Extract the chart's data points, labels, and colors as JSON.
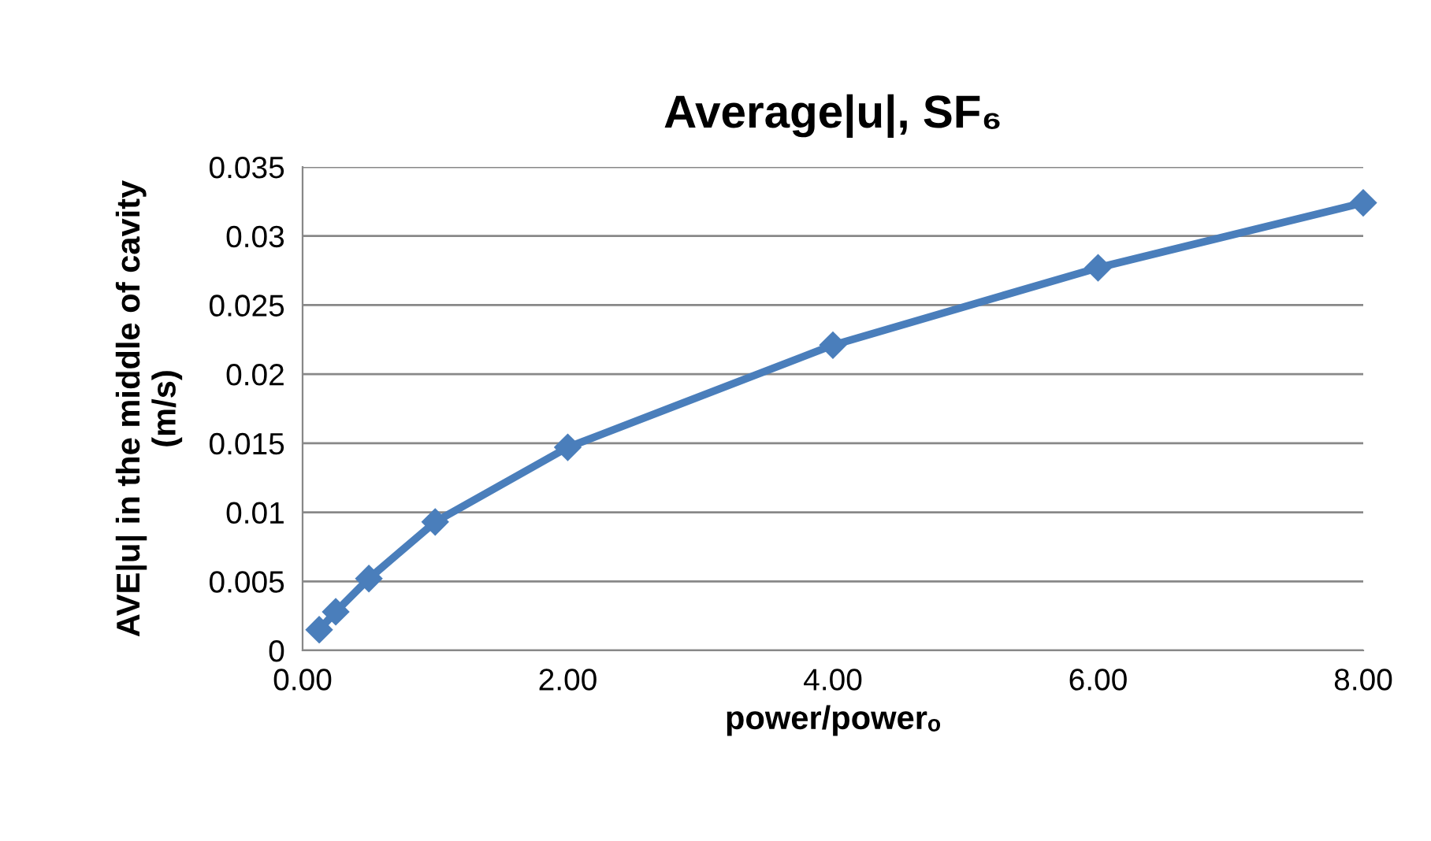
{
  "chart_data": {
    "type": "line",
    "title": "Average|u|, SF₆",
    "xlabel": "power/powerₒ",
    "ylabel": "AVE|u| in the middle of cavity\n(m/s)",
    "x": [
      0.125,
      0.25,
      0.5,
      1,
      2,
      4,
      6,
      8
    ],
    "series": [
      {
        "color": "#4a7ebb",
        "values": [
          0.0015,
          0.0028,
          0.0052,
          0.0093,
          0.0147,
          0.0221,
          0.0277,
          0.0324
        ]
      }
    ],
    "xlim": [
      0,
      8
    ],
    "xticks": [
      {
        "value": 0,
        "label": "0.00"
      },
      {
        "value": 2,
        "label": "2.00"
      },
      {
        "value": 4,
        "label": "4.00"
      },
      {
        "value": 6,
        "label": "6.00"
      },
      {
        "value": 8,
        "label": "8.00"
      }
    ],
    "ylim": [
      0,
      0.035
    ],
    "yticks": [
      0,
      0.005,
      0.01,
      0.015,
      0.02,
      0.025,
      0.03,
      0.035
    ],
    "grid": "y",
    "marker": "diamond",
    "line_style": "solid"
  }
}
